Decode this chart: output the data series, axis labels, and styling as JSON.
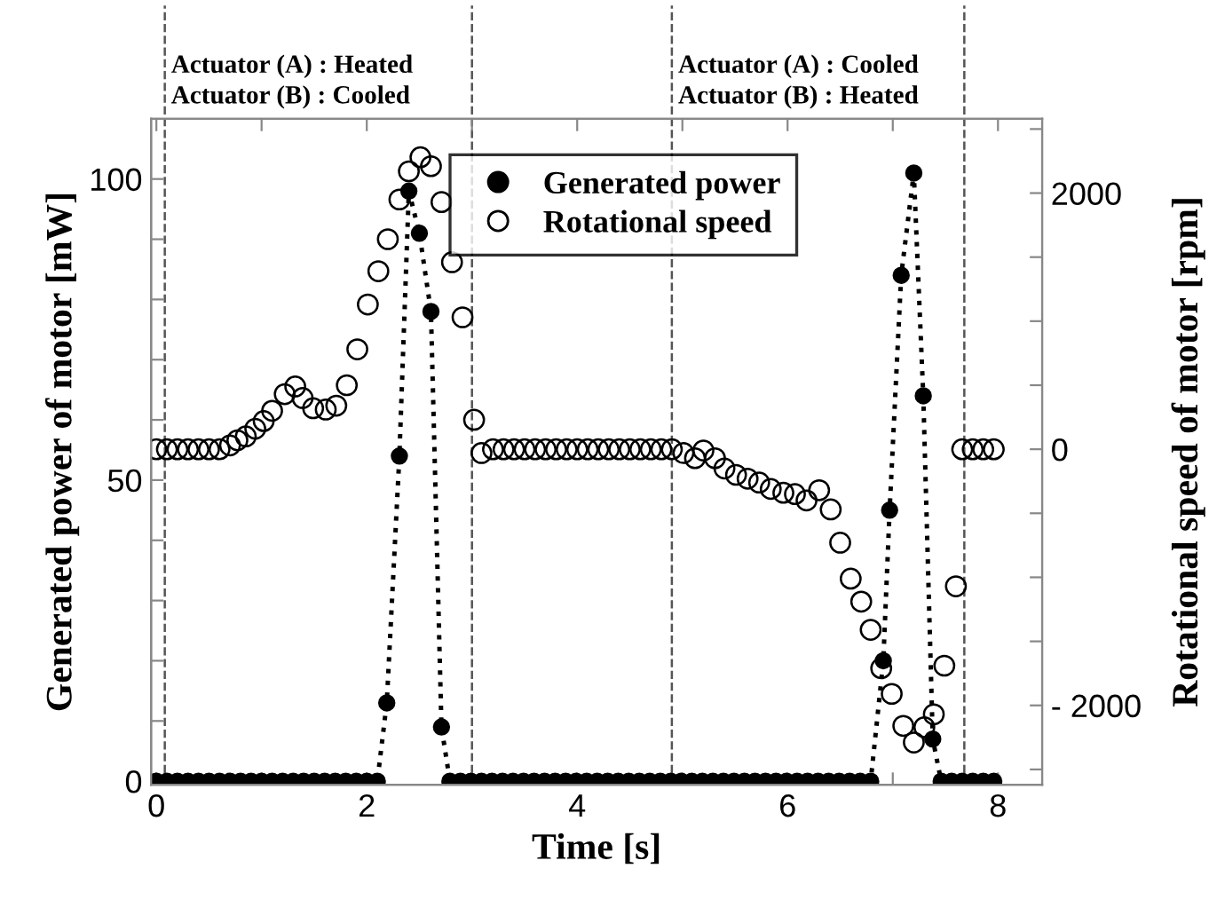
{
  "chart_data": {
    "type": "line",
    "xlabel": "Time [s]",
    "ylabel": "Generated power of motor [mW]",
    "y2label": "Rotational speed of motor [rpm]",
    "xlim": [
      -0.05,
      8.42
    ],
    "xticks": [
      0,
      {
        "value": 1,
        "label": null
      },
      2,
      {
        "value": 3,
        "label": null
      },
      4,
      {
        "value": 5,
        "label": null
      },
      6,
      {
        "value": 7,
        "label": null
      },
      8
    ],
    "ylim": [
      -0.6,
      110
    ],
    "yticks": [
      0,
      {
        "value": 10,
        "label": null
      },
      {
        "value": 20,
        "label": null
      },
      {
        "value": 30,
        "label": null
      },
      {
        "value": 40,
        "label": null
      },
      50,
      {
        "value": 60,
        "label": null
      },
      {
        "value": 70,
        "label": null
      },
      {
        "value": 80,
        "label": null
      },
      {
        "value": 90,
        "label": null
      },
      100
    ],
    "y2lim": [
      -2620,
      2580
    ],
    "y2ticks": [
      {
        "value": -2500,
        "label": null
      },
      {
        "value": -2000,
        "label": "- 2000"
      },
      {
        "value": -1500,
        "label": null
      },
      {
        "value": -1000,
        "label": null
      },
      {
        "value": -500,
        "label": null
      },
      0,
      {
        "value": 500,
        "label": null
      },
      {
        "value": 1000,
        "label": null
      },
      {
        "value": 1500,
        "label": null
      },
      2000,
      {
        "value": 2500,
        "label": null
      }
    ],
    "legend": "top",
    "grid": false,
    "ref_lines": [
      {
        "axis": "x",
        "value": 0.08,
        "line_style": "dashed"
      },
      {
        "axis": "x",
        "value": 3.0,
        "line_style": "dashed"
      },
      {
        "axis": "x",
        "value": 4.9,
        "line_style": "dashed"
      },
      {
        "axis": "x",
        "value": 7.68,
        "line_style": "dashed"
      }
    ],
    "annotations": [
      "Actuator (A) : Heated\nActuator (B) : Cooled",
      "Actuator (A) : Cooled\nActuator (B) : Heated"
    ],
    "series": [
      {
        "name": "Generated power",
        "color": "#000000",
        "marker": "circle",
        "line_style": "dotted",
        "x": [
          0,
          0.1,
          0.2,
          0.3,
          0.4,
          0.5,
          0.6,
          0.7,
          0.8,
          0.9,
          1.0,
          1.1,
          1.2,
          1.3,
          1.4,
          1.5,
          1.6,
          1.7,
          1.8,
          1.9,
          2.0,
          2.1,
          2.19,
          2.31,
          2.4,
          2.5,
          2.61,
          2.71,
          2.79,
          2.89,
          2.99,
          3.09,
          3.19,
          3.29,
          3.39,
          3.49,
          3.59,
          3.69,
          3.79,
          3.89,
          3.99,
          4.09,
          4.19,
          4.29,
          4.39,
          4.49,
          4.59,
          4.69,
          4.79,
          4.89,
          4.99,
          5.09,
          5.19,
          5.29,
          5.39,
          5.49,
          5.59,
          5.69,
          5.79,
          5.89,
          5.99,
          6.09,
          6.19,
          6.29,
          6.39,
          6.49,
          6.59,
          6.69,
          6.79,
          6.91,
          6.97,
          7.08,
          7.2,
          7.29,
          7.38,
          7.46,
          7.56,
          7.66,
          7.76,
          7.86,
          7.96
        ],
        "values": [
          0,
          0,
          0,
          0,
          0,
          0,
          0,
          0,
          0,
          0,
          0,
          0,
          0,
          0,
          0,
          0,
          0,
          0,
          0,
          0,
          0,
          0,
          13,
          54,
          98,
          91,
          78,
          9,
          0,
          0,
          0,
          0,
          0,
          0,
          0,
          0,
          0,
          0,
          0,
          0,
          0,
          0,
          0,
          0,
          0,
          0,
          0,
          0,
          0,
          0,
          0,
          0,
          0,
          0,
          0,
          0,
          0,
          0,
          0,
          0,
          0,
          0,
          0,
          0,
          0,
          0,
          0,
          0,
          0,
          20,
          45,
          84,
          101,
          64,
          7,
          0,
          0,
          0,
          0,
          0,
          0
        ]
      },
      {
        "name": "Rotational speed",
        "type": "scatter",
        "axis": "y2",
        "color": "#000000",
        "marker": "circle",
        "x": [
          0,
          0.1,
          0.2,
          0.3,
          0.4,
          0.5,
          0.6,
          0.7,
          0.77,
          0.85,
          0.94,
          1.02,
          1.1,
          1.22,
          1.32,
          1.39,
          1.49,
          1.61,
          1.71,
          1.81,
          1.91,
          2.01,
          2.11,
          2.2,
          2.31,
          2.4,
          2.51,
          2.61,
          2.71,
          2.81,
          2.91,
          3.02,
          3.09,
          3.2,
          3.3,
          3.4,
          3.5,
          3.6,
          3.7,
          3.8,
          3.9,
          4.0,
          4.1,
          4.2,
          4.3,
          4.4,
          4.5,
          4.6,
          4.7,
          4.8,
          4.9,
          5.01,
          5.12,
          5.2,
          5.31,
          5.4,
          5.51,
          5.62,
          5.73,
          5.84,
          5.96,
          6.07,
          6.18,
          6.3,
          6.41,
          6.5,
          6.6,
          6.7,
          6.79,
          6.89,
          6.99,
          7.1,
          7.2,
          7.3,
          7.39,
          7.49,
          7.6,
          7.66,
          7.76,
          7.86,
          7.96
        ],
        "values": [
          0,
          0,
          0,
          0,
          0,
          0,
          0,
          30,
          70,
          100,
          160,
          220,
          300,
          430,
          490,
          400,
          320,
          310,
          340,
          500,
          780,
          1130,
          1390,
          1640,
          1950,
          2170,
          2280,
          2210,
          1930,
          1460,
          1030,
          230,
          -30,
          0,
          0,
          0,
          0,
          0,
          0,
          0,
          0,
          0,
          0,
          0,
          0,
          0,
          0,
          0,
          0,
          0,
          0,
          -30,
          -70,
          -10,
          -70,
          -150,
          -200,
          -230,
          -260,
          -310,
          -340,
          -350,
          -400,
          -320,
          -470,
          -730,
          -1010,
          -1190,
          -1410,
          -1710,
          -1910,
          -2160,
          -2290,
          -2170,
          -2070,
          -1690,
          -1070,
          0,
          0,
          0,
          0
        ]
      }
    ]
  }
}
